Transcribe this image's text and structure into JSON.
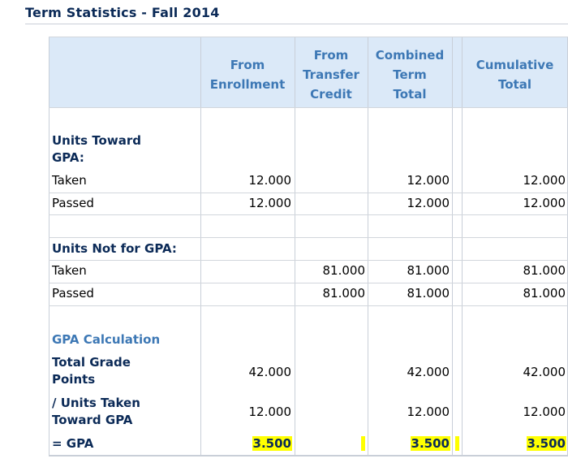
{
  "title": "Term Statistics - Fall 2014",
  "columns": {
    "enrollment": [
      "From",
      "Enrollment"
    ],
    "transfer": [
      "From",
      "Transfer",
      "Credit"
    ],
    "combined": [
      "Combined",
      "Term",
      "Total"
    ],
    "cumulative": [
      "Cumulative",
      "Total"
    ]
  },
  "sections": {
    "units_gpa": {
      "heading_line1": "Units Toward",
      "heading_line2": "GPA:",
      "taken": {
        "label": "Taken",
        "enrollment": "12.000",
        "transfer": "",
        "combined": "12.000",
        "cumulative": "12.000"
      },
      "passed": {
        "label": "Passed",
        "enrollment": "12.000",
        "transfer": "",
        "combined": "12.000",
        "cumulative": "12.000"
      }
    },
    "units_not_gpa": {
      "heading": "Units Not for GPA:",
      "taken": {
        "label": "Taken",
        "enrollment": "",
        "transfer": "81.000",
        "combined": "81.000",
        "cumulative": "81.000"
      },
      "passed": {
        "label": "Passed",
        "enrollment": "",
        "transfer": "81.000",
        "combined": "81.000",
        "cumulative": "81.000"
      }
    },
    "gpa_calc": {
      "heading": "GPA Calculation",
      "total_grade_points": {
        "label_line1": "Total Grade",
        "label_line2": "Points",
        "enrollment": "42.000",
        "combined": "42.000",
        "cumulative": "42.000"
      },
      "units_taken": {
        "label_line1": "/ Units Taken",
        "label_line2": "Toward GPA",
        "enrollment": "12.000",
        "combined": "12.000",
        "cumulative": "12.000"
      },
      "gpa": {
        "label": "= GPA",
        "enrollment": "3.500",
        "combined": "3.500",
        "cumulative": "3.500"
      }
    }
  },
  "colors": {
    "title": "#0b2a57",
    "header_bg": "#dbe9f8",
    "header_text": "#3d78b5",
    "highlight": "#ffff00"
  }
}
